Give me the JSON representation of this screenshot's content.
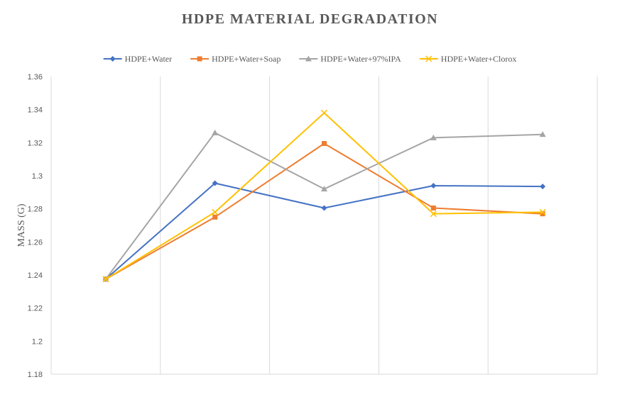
{
  "chart_data": {
    "type": "line",
    "title": "HDPE MATERIAL DEGRADATION",
    "xlabel": "",
    "ylabel": "MASS (G)",
    "ylim": [
      1.18,
      1.36
    ],
    "ytick_step": 0.02,
    "ytick_labels": [
      "1.18",
      "1.2",
      "1.22",
      "1.24",
      "1.26",
      "1.28",
      "1.3",
      "1.32",
      "1.34",
      "1.36"
    ],
    "x": [
      1,
      2,
      3,
      4,
      5
    ],
    "grid": "vertical",
    "legend": "top",
    "series": [
      {
        "name": "HDPE+Water",
        "color": "#4472C4",
        "marker": "diamond",
        "values": [
          1.2375,
          1.2955,
          1.2805,
          1.294,
          1.2935
        ]
      },
      {
        "name": "HDPE+Water+Soap",
        "color": "#ED7D31",
        "marker": "square",
        "values": [
          1.2375,
          1.275,
          1.3195,
          1.2805,
          1.277
        ]
      },
      {
        "name": "HDPE+Water+97%IPA",
        "color": "#A5A5A5",
        "marker": "triangle",
        "values": [
          1.2375,
          1.326,
          1.292,
          1.323,
          1.325
        ]
      },
      {
        "name": "HDPE+Water+Clorox",
        "color": "#FFC000",
        "marker": "x",
        "values": [
          1.2375,
          1.278,
          1.338,
          1.277,
          1.278
        ]
      }
    ]
  }
}
